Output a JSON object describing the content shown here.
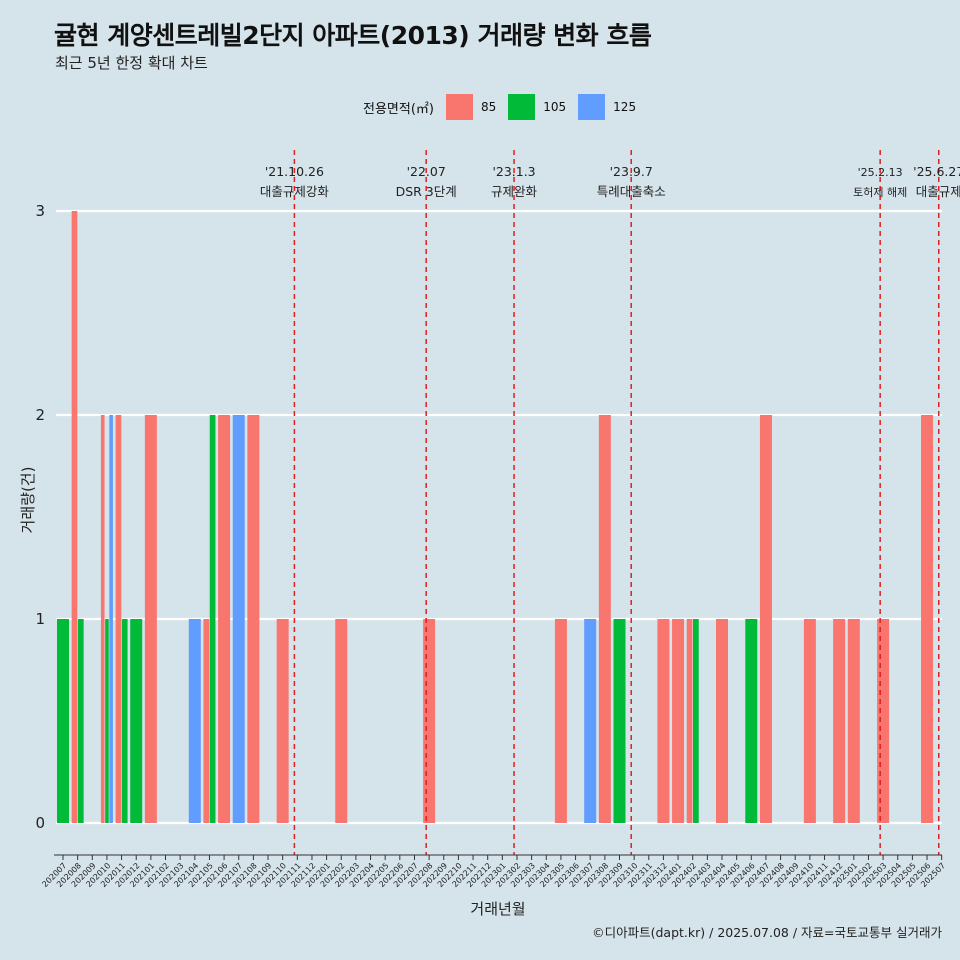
{
  "title": "귤현 계양센트레빌2단지 아파트(2013) 거래량 변화 흐름",
  "subtitle": "최근 5년 한정 확대 차트",
  "caption": "©디아파트(dapt.kr) / 2025.07.08 / 자료=국토교통부 실거래가",
  "legend": {
    "title": "전용면적(㎡)",
    "items": [
      {
        "label": "85",
        "color": "#f8766d"
      },
      {
        "label": "105",
        "color": "#00ba38"
      },
      {
        "label": "125",
        "color": "#619cff"
      }
    ]
  },
  "chart_data": {
    "type": "bar",
    "xlabel": "거래년월",
    "ylabel": "거래량(건)",
    "ylim": [
      0,
      3
    ],
    "yticks": [
      "0",
      "1",
      "2",
      "3"
    ],
    "categories": [
      "202007",
      "202008",
      "202009",
      "202010",
      "202011",
      "202012",
      "202101",
      "202102",
      "202103",
      "202104",
      "202105",
      "202106",
      "202107",
      "202108",
      "202109",
      "202110",
      "202111",
      "202112",
      "202201",
      "202202",
      "202203",
      "202204",
      "202205",
      "202206",
      "202207",
      "202208",
      "202209",
      "202210",
      "202211",
      "202212",
      "202301",
      "202302",
      "202303",
      "202304",
      "202305",
      "202306",
      "202307",
      "202308",
      "202309",
      "202310",
      "202311",
      "202312",
      "202401",
      "202402",
      "202403",
      "202404",
      "202405",
      "202406",
      "202407",
      "202408",
      "202409",
      "202410",
      "202411",
      "202412",
      "202501",
      "202502",
      "202503",
      "202504",
      "202505",
      "202506",
      "202507"
    ],
    "series": [
      {
        "name": "85",
        "color": "#f8766d",
        "values": [
          0,
          3,
          0,
          2,
          2,
          0,
          2,
          0,
          0,
          0,
          1,
          2,
          0,
          2,
          0,
          1,
          0,
          0,
          0,
          1,
          0,
          0,
          0,
          0,
          0,
          1,
          0,
          0,
          0,
          0,
          0,
          0,
          0,
          0,
          1,
          0,
          0,
          2,
          0,
          0,
          0,
          1,
          1,
          1,
          0,
          1,
          0,
          0,
          2,
          0,
          0,
          1,
          0,
          1,
          1,
          0,
          1,
          0,
          0,
          2,
          0
        ]
      },
      {
        "name": "105",
        "color": "#00ba38",
        "values": [
          1,
          1,
          0,
          1,
          1,
          1,
          0,
          0,
          0,
          0,
          2,
          0,
          0,
          0,
          0,
          0,
          0,
          0,
          0,
          0,
          0,
          0,
          0,
          0,
          0,
          0,
          0,
          0,
          0,
          0,
          0,
          0,
          0,
          0,
          0,
          0,
          0,
          0,
          1,
          0,
          0,
          0,
          0,
          1,
          0,
          0,
          0,
          1,
          0,
          0,
          0,
          0,
          0,
          0,
          0,
          0,
          0,
          0,
          0,
          0,
          0
        ]
      },
      {
        "name": "125",
        "color": "#619cff",
        "values": [
          0,
          0,
          0,
          2,
          0,
          0,
          0,
          0,
          0,
          1,
          0,
          0,
          2,
          0,
          0,
          0,
          0,
          0,
          0,
          0,
          0,
          0,
          0,
          0,
          0,
          0,
          0,
          0,
          0,
          0,
          0,
          0,
          0,
          0,
          0,
          0,
          1,
          0,
          0,
          0,
          0,
          0,
          0,
          0,
          0,
          0,
          0,
          0,
          0,
          0,
          0,
          0,
          0,
          0,
          0,
          0,
          0,
          0,
          0,
          0,
          0
        ]
      }
    ],
    "annotations": [
      {
        "date": "'21.10.26",
        "text": "대출규제강화",
        "x_index": 15.8
      },
      {
        "date": "'22.07",
        "text": "DSR 3단계",
        "x_index": 24.8
      },
      {
        "date": "'23.1.3",
        "text": "규제완화",
        "x_index": 30.8
      },
      {
        "date": "'23.9.7",
        "text": "특례대출축소",
        "x_index": 38.8
      },
      {
        "date": "'25.2.13",
        "text": "토허제 해제",
        "x_index": 55.8
      },
      {
        "date": "'25.6.27",
        "text": "대출규제",
        "x_index": 59.8
      }
    ],
    "grid": true,
    "legend_position": "top"
  }
}
